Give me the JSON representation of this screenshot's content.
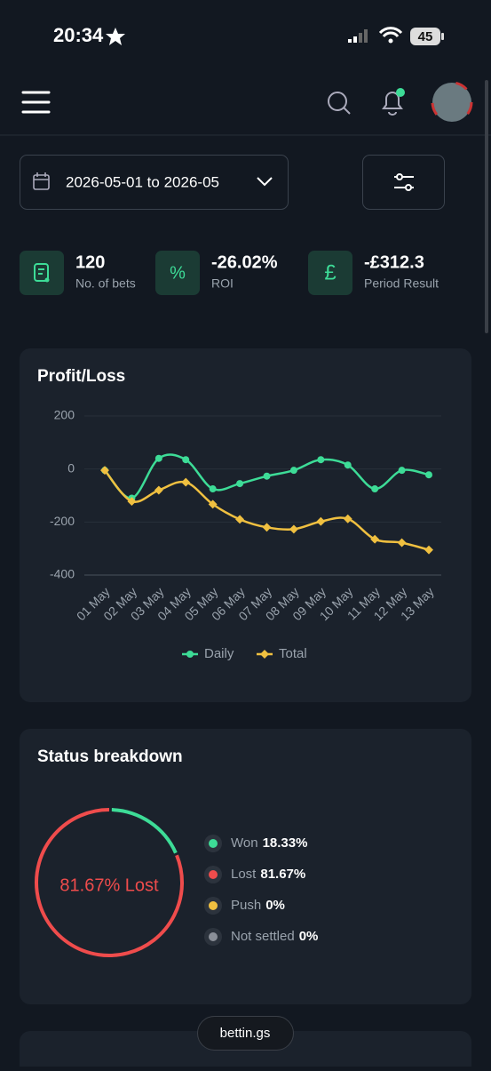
{
  "status_bar": {
    "time": "20:34",
    "battery": "45"
  },
  "filters": {
    "date_range": "2026-05-01 to 2026-05"
  },
  "stats": [
    {
      "value": "120",
      "label": "No. of bets"
    },
    {
      "icon": "%",
      "value": "-26.02%",
      "label": "ROI"
    },
    {
      "icon": "£",
      "value": "-£312.3",
      "label": "Period Result"
    }
  ],
  "chart_data": [
    {
      "type": "line",
      "title": "Profit/Loss",
      "categories": [
        "01 May",
        "02 May",
        "03 May",
        "04 May",
        "05 May",
        "06 May",
        "07 May",
        "08 May",
        "09 May",
        "10 May",
        "11 May",
        "12 May",
        "13 May"
      ],
      "series": [
        {
          "name": "Daily",
          "color": "#3ddc97",
          "values": [
            -5,
            -110,
            40,
            35,
            -75,
            -55,
            -27,
            -5,
            35,
            15,
            -75,
            -5,
            -22
          ]
        },
        {
          "name": "Total",
          "color": "#f0c040",
          "values": [
            -5,
            -122,
            -80,
            -50,
            -133,
            -190,
            -220,
            -227,
            -198,
            -188,
            -265,
            -278,
            -305
          ]
        }
      ],
      "ylim": [
        -400,
        200
      ],
      "yticks": [
        -400,
        -200,
        0,
        200
      ],
      "grid": true
    },
    {
      "type": "donut",
      "title": "Status breakdown",
      "center_label": "81.67% Lost",
      "categories": [
        "Won",
        "Lost",
        "Push",
        "Not settled"
      ],
      "values": [
        18.33,
        81.67,
        0,
        0
      ],
      "value_labels": [
        "18.33%",
        "81.67%",
        "0%",
        "0%"
      ],
      "colors": [
        "#3ddc97",
        "#ef4c4c",
        "#f0c040",
        "#8a8f98"
      ]
    }
  ],
  "footer": {
    "site": "bettin.gs"
  }
}
